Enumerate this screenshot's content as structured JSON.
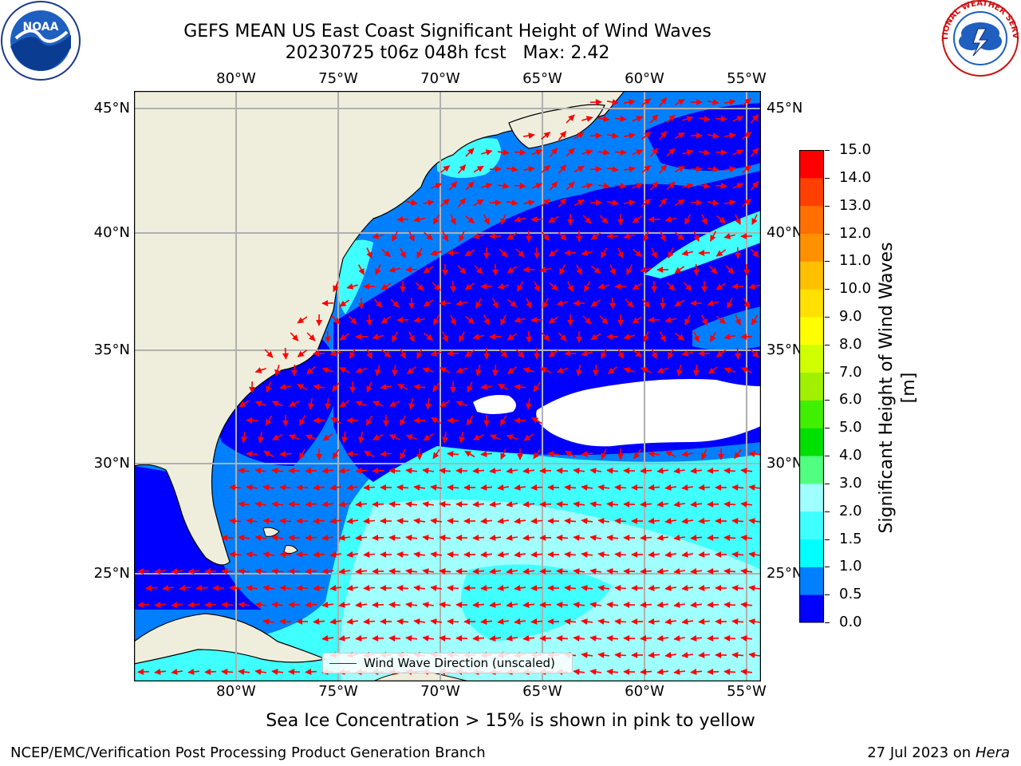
{
  "title": {
    "line1": "GEFS MEAN US East Coast Significant Height of Wind Waves",
    "line2": "20230725 t06z 048h fcst   Max: 2.42"
  },
  "map": {
    "lon_ticks": [
      "80°W",
      "75°W",
      "70°W",
      "65°W",
      "60°W",
      "55°W"
    ],
    "lat_ticks": [
      "45°N",
      "40°N",
      "35°N",
      "30°N",
      "25°N"
    ],
    "legend_label": "Wind Wave Direction (unscaled)",
    "arrow_color": "#ff0000",
    "land_color": "#efeedc"
  },
  "colorbar": {
    "title": "Significant Height of Wind Waves [m]",
    "levels": [
      "0.0",
      "0.5",
      "1.0",
      "1.5",
      "2.0",
      "3.0",
      "4.0",
      "5.0",
      "6.0",
      "7.0",
      "8.0",
      "9.0",
      "10.0",
      "11.0",
      "12.0",
      "13.0",
      "14.0",
      "15.0"
    ],
    "colors": [
      "#0000ff",
      "#0080ff",
      "#00ffff",
      "#40ffff",
      "#a0ffff",
      "#50ff80",
      "#00e000",
      "#40f000",
      "#a0f000",
      "#d0ff00",
      "#ffff00",
      "#ffe000",
      "#ffc000",
      "#ff9000",
      "#ff7000",
      "#ff4000",
      "#ff0000"
    ]
  },
  "footer": {
    "note": "Sea Ice Concentration > 15% is shown in pink to yellow",
    "credit": "NCEP/EMC/Verification Post Processing Product Generation Branch",
    "date": "27 Jul 2023 on",
    "machine": "Hera"
  },
  "logos": {
    "noaa": "NOAA",
    "nws": "NATIONAL WEATHER SERVICE"
  }
}
